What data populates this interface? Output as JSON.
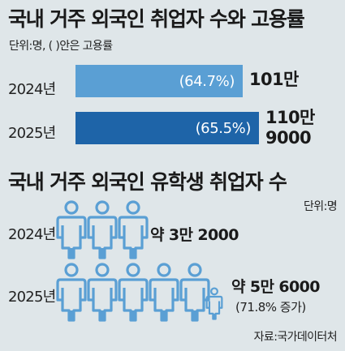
{
  "header": {
    "title": "국내 거주 외국인 취업자 수와 고용률",
    "unit_note": "단위:명, ( )안은 고용률"
  },
  "section2": {
    "title": "국내 거주 외국인 유학생 취업자 수",
    "unit_note": "단위:명"
  },
  "source": "자료:국가데이터처",
  "colors": {
    "bar_2024": "#5a9fd4",
    "bar_2025": "#1e64a8",
    "person_2024": "#5a9fd4",
    "person_2025": "#5a9fd4"
  },
  "chart_data": [
    {
      "type": "bar",
      "orientation": "horizontal",
      "categories": [
        "2024년",
        "2025년"
      ],
      "values": [
        1010000,
        1109000
      ],
      "value_labels": [
        "101만",
        "110만 9000"
      ],
      "rates": [
        "(64.7%)",
        "(65.5%)"
      ],
      "xlim": [
        0,
        1109000
      ]
    },
    {
      "type": "pictograph",
      "categories": [
        "2024년",
        "2025년"
      ],
      "values": [
        32000,
        56000
      ],
      "value_labels": [
        "약 3만 2000",
        "약 5만 6000"
      ],
      "change_labels": [
        "",
        "(71.8% 증가)"
      ],
      "persons_full": [
        3,
        5
      ],
      "persons_small": [
        0,
        1
      ]
    }
  ]
}
